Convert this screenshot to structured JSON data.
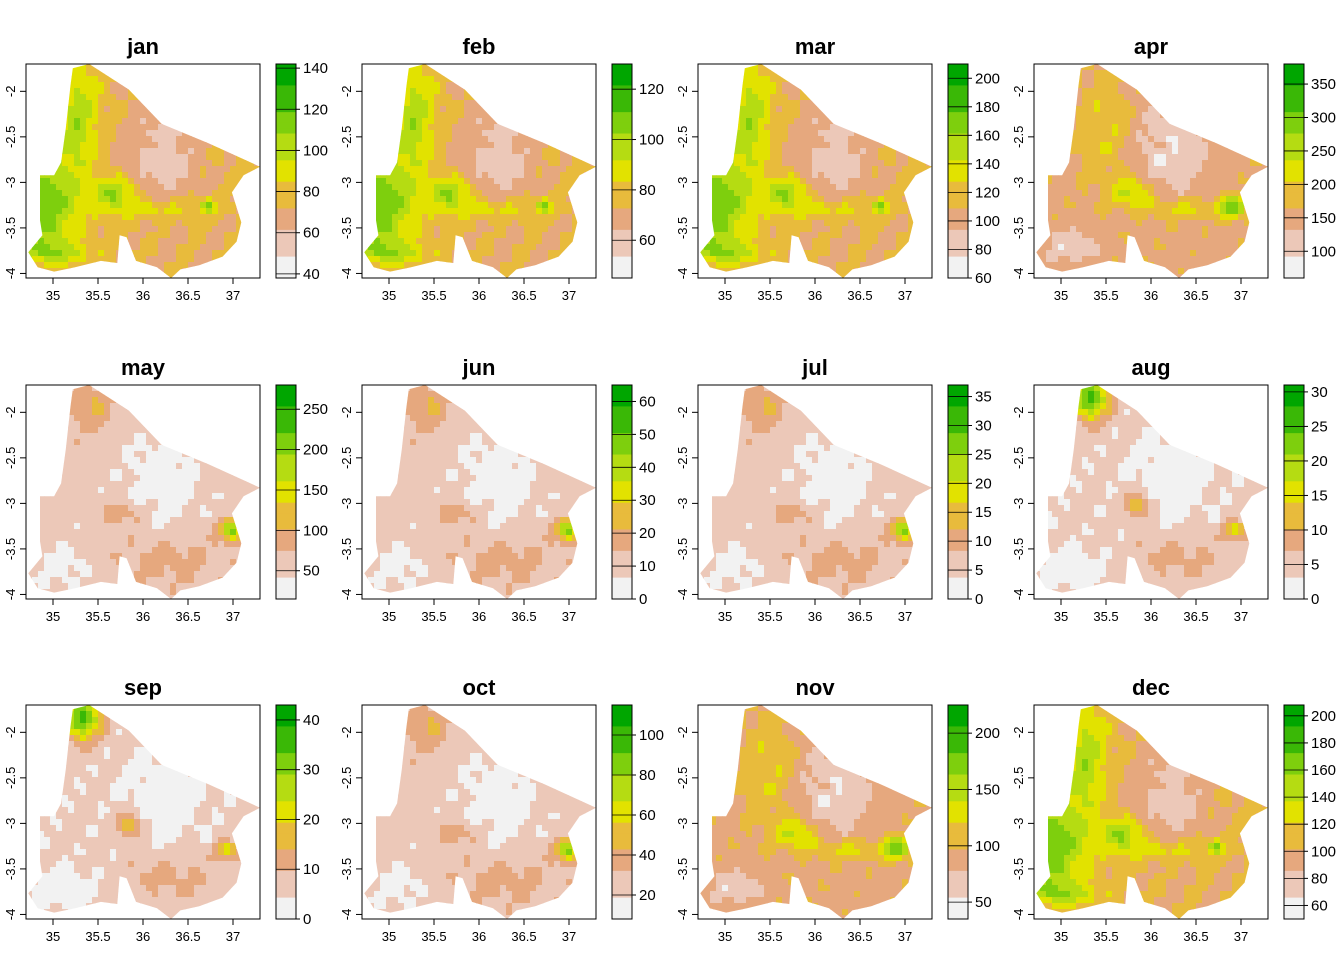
{
  "chart_data": {
    "type": "heatmap",
    "description_layout": "3 rows x 4 columns of raster maps",
    "colors": {
      "palette": [
        "#f2f2f2",
        "#ecc8b8",
        "#e6a87e",
        "#e8bb3c",
        "#e2e200",
        "#b5dc12",
        "#7ecf0d",
        "#3ab806",
        "#00a600"
      ],
      "border": "#000000"
    },
    "axes": {
      "x_ticks": [
        "35",
        "35.5",
        "36",
        "36.5",
        "37"
      ],
      "x_values": [
        35,
        35.5,
        36,
        36.5,
        37
      ],
      "xlim": [
        34.7,
        37.3
      ],
      "y_ticks": [
        "-2",
        "-2.5",
        "-3",
        "-3.5",
        "-4"
      ],
      "y_values": [
        -2,
        -2.5,
        -3,
        -3.5,
        -4
      ],
      "ylim": [
        -4.05,
        -1.7
      ]
    },
    "panels": [
      {
        "title": "jan",
        "legend_ticks": [
          "140",
          "120",
          "100",
          "80",
          "60",
          "40"
        ],
        "legend_values": [
          140,
          120,
          100,
          80,
          60,
          40
        ],
        "range": [
          38,
          142
        ],
        "pattern": "west-wet"
      },
      {
        "title": "feb",
        "legend_ticks": [
          "120",
          "100",
          "80",
          "60"
        ],
        "legend_values": [
          120,
          100,
          80,
          60
        ],
        "range": [
          45,
          130
        ],
        "pattern": "west-wet"
      },
      {
        "title": "mar",
        "legend_ticks": [
          "200",
          "180",
          "160",
          "140",
          "120",
          "100",
          "80",
          "60"
        ],
        "legend_values": [
          200,
          180,
          160,
          140,
          120,
          100,
          80,
          60
        ],
        "range": [
          60,
          210
        ],
        "pattern": "west-wet"
      },
      {
        "title": "apr",
        "legend_ticks": [
          "350",
          "300",
          "250",
          "200",
          "150",
          "100"
        ],
        "legend_values": [
          350,
          300,
          250,
          200,
          150,
          100
        ],
        "range": [
          60,
          380
        ],
        "pattern": "east-wet"
      },
      {
        "title": "may",
        "legend_ticks": [
          "250",
          "200",
          "150",
          "100",
          "50"
        ],
        "legend_values": [
          250,
          200,
          150,
          100,
          50
        ],
        "range": [
          15,
          280
        ],
        "pattern": "dry-east"
      },
      {
        "title": "jun",
        "legend_ticks": [
          "60",
          "50",
          "40",
          "30",
          "20",
          "10",
          "0"
        ],
        "legend_values": [
          60,
          50,
          40,
          30,
          20,
          10,
          0
        ],
        "range": [
          0,
          65
        ],
        "pattern": "dry-east"
      },
      {
        "title": "jul",
        "legend_ticks": [
          "35",
          "30",
          "25",
          "20",
          "15",
          "10",
          "5",
          "0"
        ],
        "legend_values": [
          35,
          30,
          25,
          20,
          15,
          10,
          5,
          0
        ],
        "range": [
          0,
          37
        ],
        "pattern": "dry-east"
      },
      {
        "title": "aug",
        "legend_ticks": [
          "30",
          "25",
          "20",
          "15",
          "10",
          "5",
          "0"
        ],
        "legend_values": [
          30,
          25,
          20,
          15,
          10,
          5,
          0
        ],
        "range": [
          0,
          31
        ],
        "pattern": "dry-north"
      },
      {
        "title": "sep",
        "legend_ticks": [
          "40",
          "30",
          "20",
          "10",
          "0"
        ],
        "legend_values": [
          40,
          30,
          20,
          10,
          0
        ],
        "range": [
          0,
          43
        ],
        "pattern": "dry-north"
      },
      {
        "title": "oct",
        "legend_ticks": [
          "100",
          "80",
          "60",
          "40",
          "20"
        ],
        "legend_values": [
          100,
          80,
          60,
          40,
          20
        ],
        "range": [
          8,
          115
        ],
        "pattern": "dry-east"
      },
      {
        "title": "nov",
        "legend_ticks": [
          "200",
          "150",
          "100",
          "50"
        ],
        "legend_values": [
          200,
          150,
          100,
          50
        ],
        "range": [
          35,
          225
        ],
        "pattern": "east-wet"
      },
      {
        "title": "dec",
        "legend_ticks": [
          "200",
          "180",
          "160",
          "140",
          "120",
          "100",
          "80",
          "60"
        ],
        "legend_values": [
          200,
          180,
          160,
          140,
          120,
          100,
          80,
          60
        ],
        "range": [
          50,
          208
        ],
        "pattern": "west-wet"
      }
    ]
  }
}
